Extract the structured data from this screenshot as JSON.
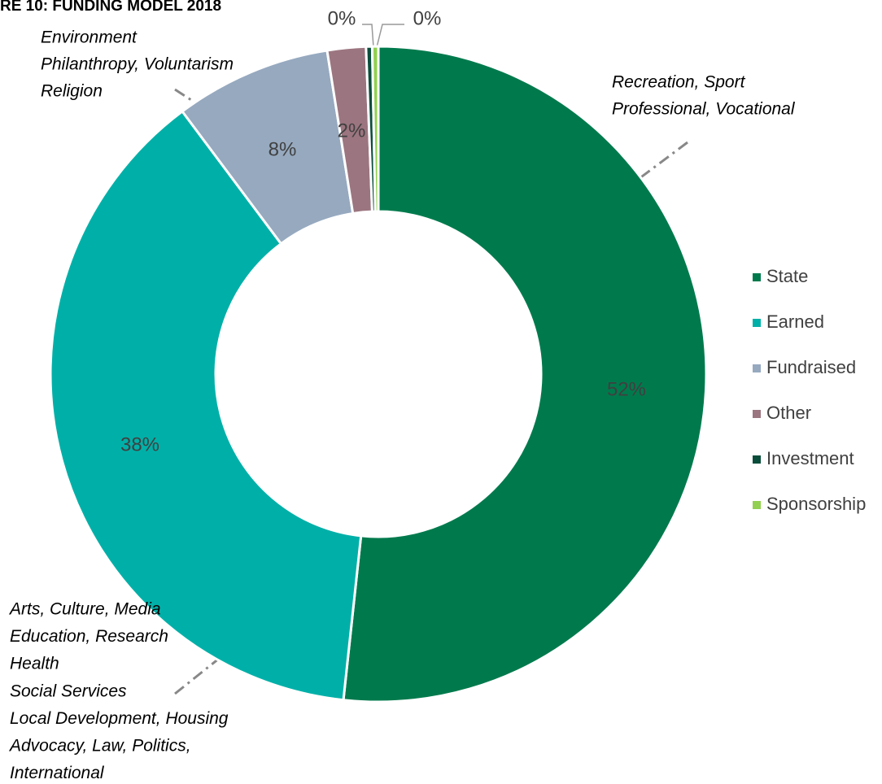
{
  "chart_data": {
    "type": "donut",
    "title": "RE 10: FUNDING MODEL 2018",
    "categories": [
      "State",
      "Earned",
      "Fundraised",
      "Other",
      "Investment",
      "Sponsorship"
    ],
    "values": [
      51.7,
      38.1,
      7.7,
      1.9,
      0.3,
      0.3
    ],
    "value_labels": [
      "52%",
      "38%",
      "8%",
      "2%",
      "0%",
      "0%"
    ],
    "colors": [
      "#007a4d",
      "#00b0a8",
      "#96a9bf",
      "#9b7580",
      "#0a4d3a",
      "#92d050"
    ],
    "legend": "right",
    "annotations": [
      {
        "lines": [
          "Environment",
          "Philanthropy, Voluntarism",
          "Religion"
        ]
      },
      {
        "lines": [
          "Recreation, Sport",
          "Professional, Vocational"
        ]
      },
      {
        "lines": [
          "Arts, Culture, Media",
          "Education, Research",
          "Health",
          "Social Services",
          "Local Development, Housing",
          "Advocacy, Law, Politics,",
          "International"
        ]
      }
    ]
  }
}
